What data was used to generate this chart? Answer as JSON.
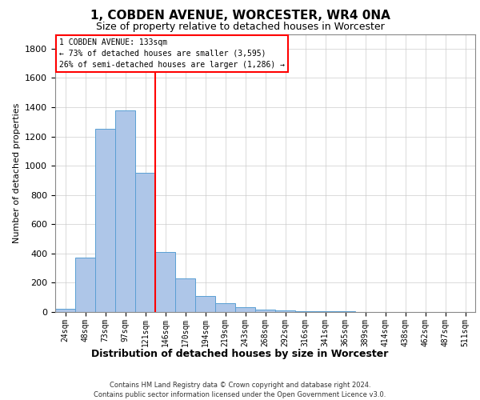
{
  "title": "1, COBDEN AVENUE, WORCESTER, WR4 0NA",
  "subtitle": "Size of property relative to detached houses in Worcester",
  "xlabel": "Distribution of detached houses by size in Worcester",
  "ylabel": "Number of detached properties",
  "categories": [
    "24sqm",
    "48sqm",
    "73sqm",
    "97sqm",
    "121sqm",
    "146sqm",
    "170sqm",
    "194sqm",
    "219sqm",
    "243sqm",
    "268sqm",
    "292sqm",
    "316sqm",
    "341sqm",
    "365sqm",
    "389sqm",
    "414sqm",
    "438sqm",
    "462sqm",
    "487sqm",
    "511sqm"
  ],
  "values": [
    20,
    370,
    1250,
    1380,
    950,
    410,
    230,
    110,
    60,
    35,
    18,
    10,
    6,
    4,
    3,
    2,
    1,
    1,
    1,
    0,
    0
  ],
  "bar_color": "#aec6e8",
  "bar_edgecolor": "#5a9fd4",
  "vline_x": 4.5,
  "vline_color": "red",
  "annotation_text": "1 COBDEN AVENUE: 133sqm\n← 73% of detached houses are smaller (3,595)\n26% of semi-detached houses are larger (1,286) →",
  "ylim": [
    0,
    1900
  ],
  "yticks": [
    0,
    200,
    400,
    600,
    800,
    1000,
    1200,
    1400,
    1600,
    1800
  ],
  "footer_line1": "Contains HM Land Registry data © Crown copyright and database right 2024.",
  "footer_line2": "Contains public sector information licensed under the Open Government Licence v3.0.",
  "grid_color": "#cccccc",
  "title_fontsize": 11,
  "subtitle_fontsize": 9,
  "ylabel_fontsize": 8,
  "tick_fontsize": 7,
  "annotation_fontsize": 7,
  "footer_fontsize": 6
}
